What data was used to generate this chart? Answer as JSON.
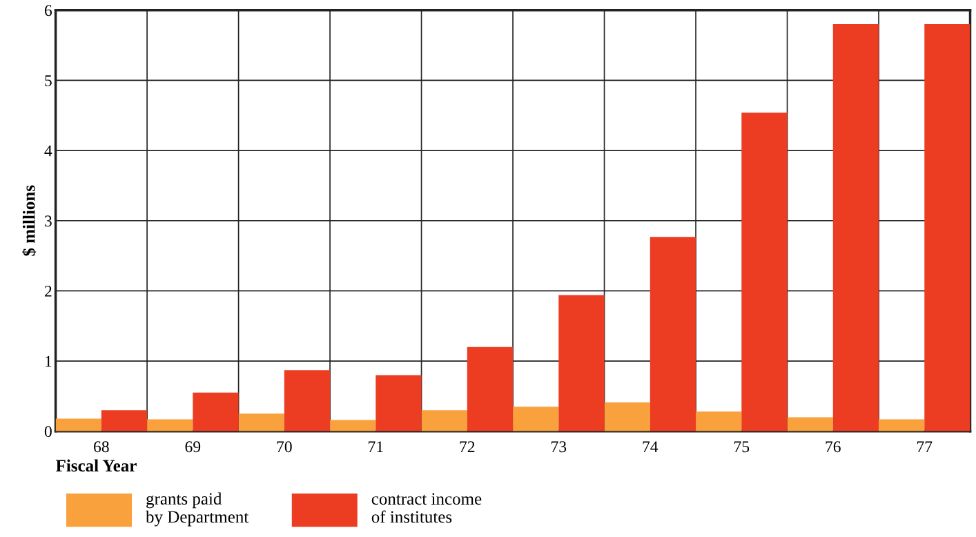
{
  "chart_data": {
    "type": "bar",
    "xlabel": "Fiscal Year",
    "ylabel": "$ millions",
    "categories": [
      "68",
      "69",
      "70",
      "71",
      "72",
      "73",
      "74",
      "75",
      "76",
      "77"
    ],
    "series": [
      {
        "name": "grants paid\nby Department",
        "color": "#f9a13c",
        "values": [
          0.18,
          0.17,
          0.25,
          0.16,
          0.3,
          0.35,
          0.41,
          0.28,
          0.2,
          0.17
        ]
      },
      {
        "name": "contract income\nof institutes",
        "color": "#ec3d23",
        "values": [
          0.3,
          0.55,
          0.87,
          0.8,
          1.2,
          1.94,
          2.77,
          4.54,
          5.8,
          5.8
        ]
      }
    ],
    "ylim": [
      0,
      6
    ],
    "yticks": [
      0,
      1,
      2,
      3,
      4,
      5,
      6
    ],
    "grid": true,
    "legend": "bottom left"
  }
}
